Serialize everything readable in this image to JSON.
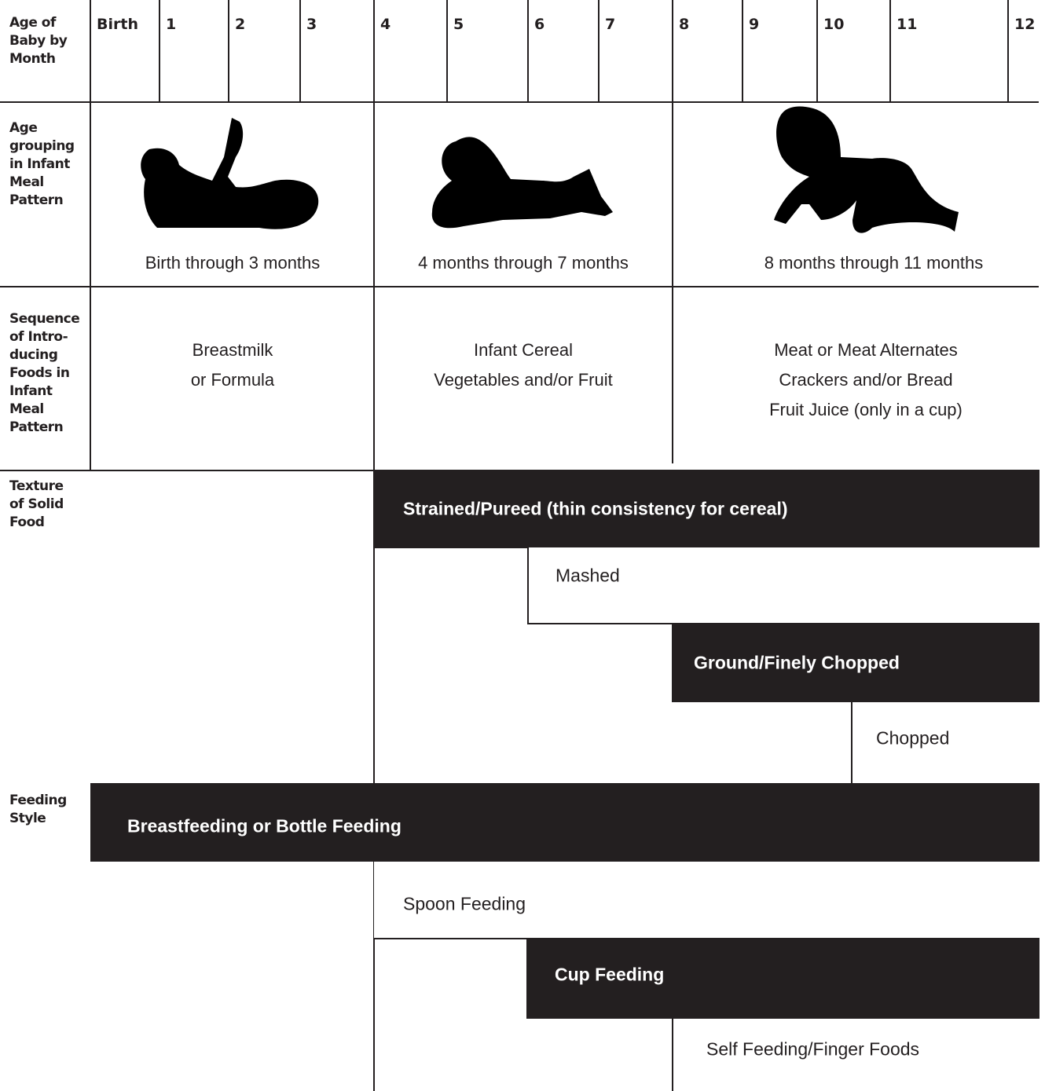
{
  "months_row": {
    "label": [
      "Age of",
      "Baby by",
      "Month"
    ],
    "months": [
      "Birth",
      "1",
      "2",
      "3",
      "4",
      "5",
      "6",
      "7",
      "8",
      "9",
      "10",
      "11",
      "12"
    ]
  },
  "age_grouping": {
    "label": [
      "Age",
      "grouping",
      "in Infant",
      "Meal",
      "Pattern"
    ],
    "groups": [
      "Birth through 3 months",
      "4 months through 7 months",
      "8 months through 11 months"
    ]
  },
  "food_sequence": {
    "label": [
      "Sequence",
      "of Intro-",
      "ducing",
      "Foods in",
      "Infant",
      "Meal",
      "Pattern"
    ],
    "groups": [
      [
        "Breastmilk",
        "or Formula"
      ],
      [
        "Infant Cereal",
        "Vegetables and/or Fruit"
      ],
      [
        "Meat or Meat Alternates",
        "Crackers and/or Bread",
        "Fruit Juice (only in a cup)"
      ]
    ]
  },
  "texture": {
    "label": [
      "Texture",
      "of Solid",
      "Food"
    ],
    "stages": [
      "Strained/Pureed (thin consistency for cereal)",
      "Mashed",
      "Ground/Finely Chopped",
      "Chopped"
    ]
  },
  "feeding_style": {
    "label": [
      "Feeding",
      "Style"
    ],
    "stages": [
      "Breastfeeding or Bottle Feeding",
      "Spoon Feeding",
      "Cup Feeding",
      "Self Feeding/Finger Foods"
    ]
  }
}
